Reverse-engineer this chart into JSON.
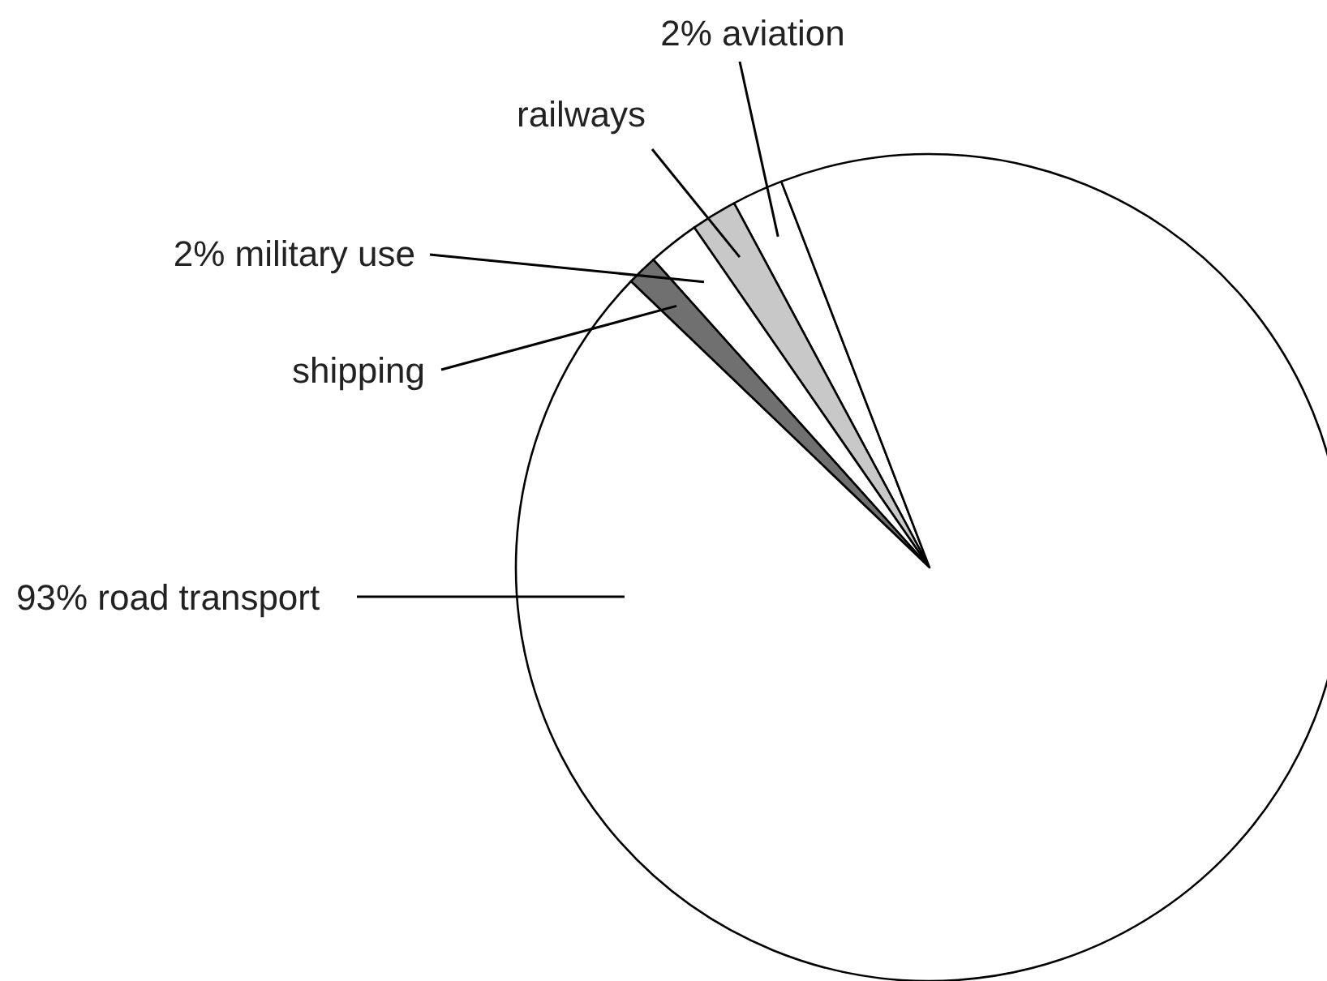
{
  "chart_data": {
    "type": "pie",
    "categories": [
      "2% aviation",
      "railways",
      "2% military use",
      "shipping",
      "93% road transport"
    ],
    "values": [
      2,
      1.8,
      2,
      1.2,
      93
    ],
    "colors": [
      "#ffffff",
      "#c8c8c8",
      "#ffffff",
      "#707070",
      "#ffffff"
    ]
  }
}
